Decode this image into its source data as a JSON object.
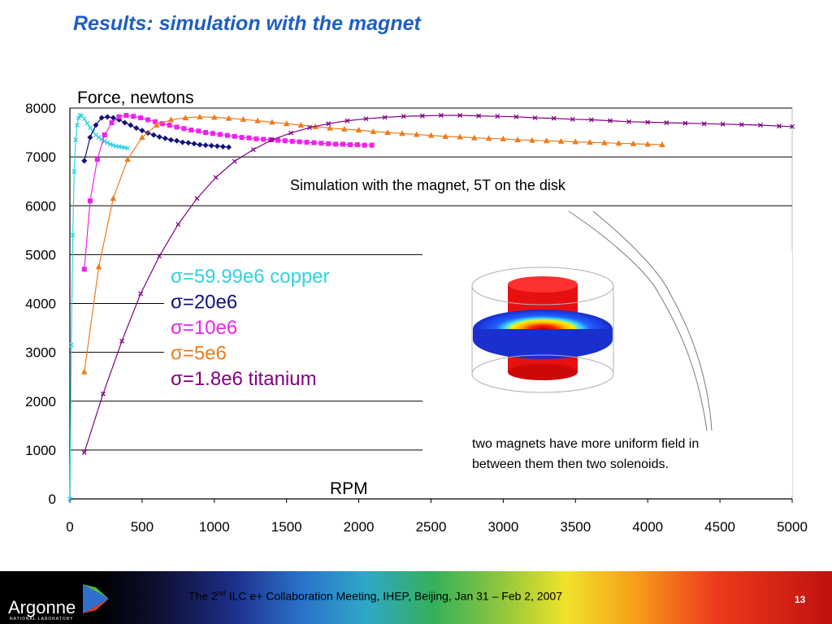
{
  "slide": {
    "title": "Results: simulation with the magnet",
    "footer_prefix": "The 2",
    "footer_sup": "nd",
    "footer_suffix": " ILC e+ Collaboration Meeting, IHEP, Beijing, Jan 31 – Feb 2, 2007",
    "page_number": "13",
    "logo_text": "Argonne",
    "logo_subtext": "NATIONAL LABORATORY"
  },
  "chart_data": {
    "type": "line",
    "ylabel": "Force, newtons",
    "xlabel": "RPM",
    "xlim": [
      0,
      5000
    ],
    "ylim": [
      0,
      8000
    ],
    "xticks": [
      0,
      500,
      1000,
      1500,
      2000,
      2500,
      3000,
      3500,
      4000,
      4500,
      5000
    ],
    "yticks": [
      0,
      1000,
      2000,
      3000,
      4000,
      5000,
      6000,
      7000,
      8000
    ],
    "grid": "horizontal",
    "annotation": "Simulation with the magnet, 5T on the disk",
    "note": [
      "two magnets have more uniform field in",
      "between them then two solenoids."
    ],
    "series": [
      {
        "name": "σ=59.99e6 copper",
        "color": "#2fd3e0",
        "marker": "x",
        "x": [
          0,
          10,
          20,
          30,
          40,
          50,
          60,
          70,
          80,
          100,
          120,
          140,
          160,
          180,
          200,
          220,
          240,
          260,
          280,
          300,
          320,
          340,
          360,
          380,
          400
        ],
        "y": [
          0,
          3150,
          5400,
          6700,
          7350,
          7650,
          7800,
          7850,
          7840,
          7780,
          7690,
          7600,
          7520,
          7450,
          7400,
          7360,
          7320,
          7290,
          7260,
          7240,
          7220,
          7210,
          7200,
          7190,
          7180
        ]
      },
      {
        "name": "σ=20e6",
        "color": "#10127a",
        "marker": "diamond",
        "x": [
          100,
          140,
          180,
          220,
          260,
          300,
          340,
          380,
          420,
          460,
          500,
          540,
          580,
          620,
          660,
          700,
          740,
          780,
          820,
          860,
          900,
          940,
          980,
          1020,
          1060,
          1100
        ],
        "y": [
          6920,
          7400,
          7650,
          7800,
          7820,
          7800,
          7760,
          7700,
          7650,
          7590,
          7540,
          7490,
          7450,
          7410,
          7380,
          7350,
          7330,
          7300,
          7290,
          7270,
          7250,
          7240,
          7230,
          7220,
          7210,
          7200
        ]
      },
      {
        "name": "σ=10e6",
        "color": "#ee22ee",
        "marker": "square",
        "x": [
          100,
          140,
          190,
          240,
          290,
          340,
          390,
          440,
          490,
          540,
          590,
          640,
          690,
          740,
          790,
          840,
          890,
          940,
          990,
          1040,
          1090,
          1140,
          1190,
          1240,
          1290,
          1340,
          1390,
          1440,
          1490,
          1540,
          1590,
          1640,
          1690,
          1740,
          1790,
          1840,
          1890,
          1940,
          1990,
          2040,
          2090
        ],
        "y": [
          4700,
          6100,
          6950,
          7450,
          7700,
          7820,
          7850,
          7830,
          7800,
          7760,
          7720,
          7680,
          7650,
          7610,
          7580,
          7550,
          7530,
          7500,
          7480,
          7460,
          7440,
          7420,
          7400,
          7390,
          7370,
          7360,
          7350,
          7340,
          7330,
          7320,
          7310,
          7300,
          7290,
          7280,
          7270,
          7260,
          7260,
          7250,
          7250,
          7240,
          7240
        ]
      },
      {
        "name": "σ=5e6",
        "color": "#f07a1a",
        "marker": "triangle",
        "x": [
          100,
          200,
          300,
          400,
          500,
          600,
          700,
          800,
          900,
          1000,
          1100,
          1200,
          1300,
          1400,
          1500,
          1600,
          1700,
          1800,
          1900,
          2000,
          2100,
          2200,
          2300,
          2400,
          2500,
          2600,
          2700,
          2800,
          2900,
          3000,
          3100,
          3200,
          3300,
          3400,
          3500,
          3600,
          3700,
          3800,
          3900,
          4000,
          4100
        ],
        "y": [
          2600,
          4750,
          6150,
          6950,
          7400,
          7650,
          7760,
          7800,
          7820,
          7810,
          7790,
          7770,
          7740,
          7710,
          7680,
          7650,
          7620,
          7590,
          7570,
          7550,
          7520,
          7500,
          7480,
          7460,
          7440,
          7420,
          7410,
          7390,
          7380,
          7370,
          7350,
          7340,
          7330,
          7320,
          7310,
          7300,
          7290,
          7280,
          7270,
          7260,
          7250
        ]
      },
      {
        "name": "σ=1.8e6 titanium",
        "color": "#800080",
        "marker": "x",
        "x": [
          100,
          230,
          360,
          490,
          620,
          750,
          880,
          1010,
          1140,
          1270,
          1400,
          1530,
          1660,
          1790,
          1920,
          2050,
          2180,
          2310,
          2440,
          2570,
          2700,
          2830,
          2960,
          3090,
          3220,
          3350,
          3480,
          3610,
          3740,
          3870,
          4000,
          4130,
          4260,
          4390,
          4520,
          4650,
          4780,
          4910,
          5000
        ],
        "y": [
          950,
          2150,
          3230,
          4200,
          4970,
          5620,
          6150,
          6580,
          6910,
          7150,
          7350,
          7490,
          7600,
          7680,
          7740,
          7780,
          7810,
          7830,
          7840,
          7850,
          7850,
          7840,
          7830,
          7820,
          7800,
          7790,
          7770,
          7760,
          7740,
          7720,
          7710,
          7700,
          7690,
          7680,
          7670,
          7660,
          7650,
          7630,
          7620
        ]
      }
    ]
  }
}
